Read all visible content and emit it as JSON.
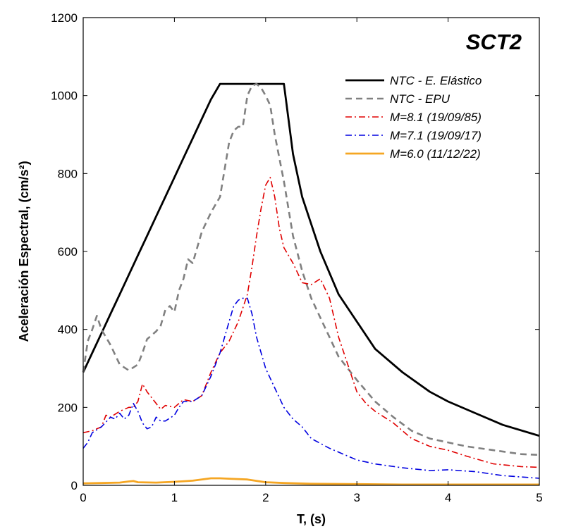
{
  "chart_data": {
    "type": "line",
    "title": "SCT2",
    "xlabel": "T, (s)",
    "ylabel": "Aceleración Espectral, (cm/s²)",
    "xlim": [
      0,
      5
    ],
    "ylim": [
      0,
      1200
    ],
    "x_ticks": [
      0,
      1,
      2,
      3,
      4,
      5
    ],
    "y_ticks": [
      0,
      200,
      400,
      600,
      800,
      1000,
      1200
    ],
    "grid": false,
    "legend_position": "top-right",
    "series": [
      {
        "name": "NTC - E. Elástico",
        "color": "#000000",
        "dash": "solid",
        "x": [
          0,
          0.1,
          0.2,
          0.3,
          0.4,
          0.5,
          0.6,
          0.7,
          0.8,
          0.9,
          1.0,
          1.1,
          1.2,
          1.3,
          1.4,
          1.5,
          1.6,
          1.8,
          2.0,
          2.2,
          2.3,
          2.4,
          2.5,
          2.6,
          2.8,
          3.0,
          3.2,
          3.5,
          3.8,
          4.0,
          4.3,
          4.6,
          5.0
        ],
        "y": [
          290,
          340,
          390,
          440,
          490,
          540,
          590,
          640,
          690,
          740,
          790,
          840,
          890,
          940,
          990,
          1030,
          1030,
          1030,
          1030,
          1030,
          850,
          740,
          670,
          600,
          490,
          420,
          350,
          290,
          240,
          215,
          185,
          155,
          127
        ]
      },
      {
        "name": "NTC - EPU",
        "color": "#808080",
        "dash": "dashed",
        "x": [
          0,
          0.05,
          0.1,
          0.15,
          0.2,
          0.3,
          0.4,
          0.5,
          0.6,
          0.65,
          0.7,
          0.8,
          0.85,
          0.9,
          0.95,
          1.0,
          1.05,
          1.1,
          1.15,
          1.2,
          1.3,
          1.4,
          1.45,
          1.5,
          1.6,
          1.65,
          1.7,
          1.75,
          1.8,
          1.85,
          1.9,
          1.95,
          2.0,
          2.05,
          2.1,
          2.2,
          2.3,
          2.4,
          2.5,
          2.6,
          2.7,
          2.8,
          3.0,
          3.2,
          3.4,
          3.6,
          3.8,
          4.0,
          4.2,
          4.5,
          4.8,
          5.0
        ],
        "y": [
          290,
          370,
          400,
          435,
          400,
          360,
          310,
          295,
          310,
          340,
          375,
          395,
          410,
          450,
          460,
          445,
          500,
          530,
          580,
          570,
          650,
          700,
          720,
          740,
          880,
          910,
          920,
          920,
          1000,
          1025,
          1030,
          1020,
          1000,
          975,
          900,
          780,
          640,
          550,
          480,
          430,
          380,
          330,
          270,
          215,
          175,
          140,
          120,
          110,
          100,
          90,
          80,
          78
        ]
      },
      {
        "name": "M=8.1 (19/09/85)",
        "color": "#e00000",
        "dash": "dashdot",
        "x": [
          0,
          0.1,
          0.2,
          0.25,
          0.3,
          0.4,
          0.5,
          0.55,
          0.6,
          0.65,
          0.7,
          0.8,
          0.85,
          0.9,
          1.0,
          1.1,
          1.2,
          1.3,
          1.4,
          1.5,
          1.6,
          1.7,
          1.8,
          1.85,
          1.9,
          1.95,
          2.0,
          2.05,
          2.1,
          2.15,
          2.2,
          2.3,
          2.4,
          2.5,
          2.6,
          2.7,
          2.8,
          2.9,
          3.0,
          3.1,
          3.2,
          3.4,
          3.6,
          3.8,
          4.0,
          4.2,
          4.5,
          4.8,
          5.0
        ],
        "y": [
          135,
          140,
          150,
          180,
          175,
          190,
          200,
          200,
          215,
          260,
          240,
          210,
          195,
          205,
          200,
          220,
          215,
          230,
          290,
          340,
          370,
          420,
          490,
          560,
          640,
          710,
          770,
          790,
          740,
          660,
          610,
          570,
          520,
          515,
          530,
          480,
          380,
          310,
          240,
          210,
          190,
          160,
          120,
          100,
          90,
          75,
          55,
          48,
          46
        ]
      },
      {
        "name": "M=7.1 (19/09/17)",
        "color": "#0000e0",
        "dash": "dashdot",
        "x": [
          0,
          0.05,
          0.1,
          0.2,
          0.3,
          0.35,
          0.4,
          0.45,
          0.5,
          0.55,
          0.6,
          0.65,
          0.7,
          0.75,
          0.8,
          0.85,
          0.9,
          1.0,
          1.05,
          1.1,
          1.15,
          1.2,
          1.3,
          1.4,
          1.5,
          1.6,
          1.65,
          1.7,
          1.75,
          1.8,
          1.85,
          1.9,
          2.0,
          2.1,
          2.2,
          2.3,
          2.4,
          2.5,
          2.7,
          3.0,
          3.2,
          3.5,
          3.8,
          4.0,
          4.3,
          4.6,
          5.0
        ],
        "y": [
          95,
          110,
          135,
          150,
          175,
          170,
          185,
          170,
          180,
          210,
          190,
          160,
          145,
          150,
          175,
          165,
          165,
          180,
          200,
          215,
          215,
          215,
          230,
          280,
          340,
          420,
          460,
          475,
          480,
          480,
          440,
          380,
          300,
          250,
          200,
          170,
          150,
          120,
          95,
          65,
          55,
          45,
          38,
          40,
          35,
          25,
          18
        ]
      },
      {
        "name": "M=6.0 (11/12/22)",
        "color": "#f5a623",
        "dash": "solid",
        "x": [
          0,
          0.2,
          0.4,
          0.5,
          0.55,
          0.6,
          0.8,
          1.0,
          1.2,
          1.4,
          1.5,
          1.6,
          1.8,
          2.0,
          2.2,
          2.5,
          3.0,
          3.5,
          4.0,
          4.5,
          5.0
        ],
        "y": [
          5,
          6,
          7,
          10,
          11,
          8,
          7,
          9,
          12,
          18,
          18,
          17,
          15,
          8,
          6,
          4,
          3,
          2,
          2,
          2,
          2
        ]
      }
    ]
  }
}
